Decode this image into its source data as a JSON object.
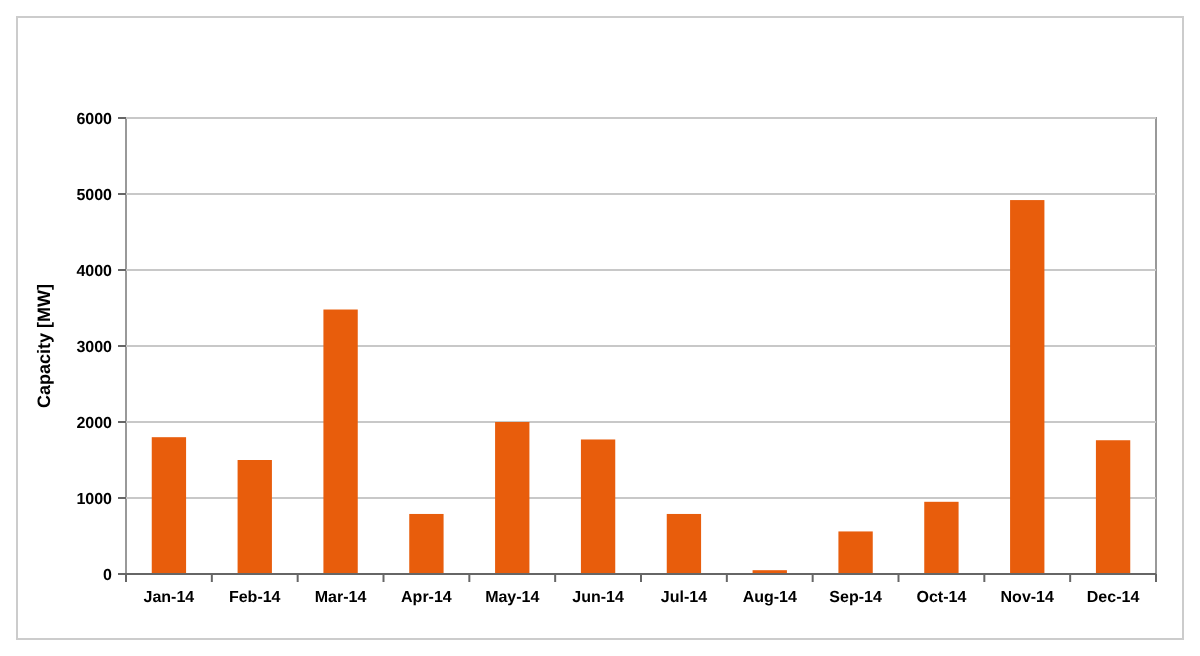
{
  "chart_data": {
    "type": "bar",
    "ylabel": "Capacity [MW]",
    "categories": [
      "Jan-14",
      "Feb-14",
      "Mar-14",
      "Apr-14",
      "May-14",
      "Jun-14",
      "Jul-14",
      "Aug-14",
      "Sep-14",
      "Oct-14",
      "Nov-14",
      "Dec-14"
    ],
    "values": [
      1800,
      1500,
      3480,
      790,
      2000,
      1770,
      790,
      50,
      560,
      950,
      4920,
      1760
    ],
    "color": "#e85d0c",
    "ylim": [
      0,
      6000
    ],
    "yticks": [
      0,
      1000,
      2000,
      3000,
      4000,
      5000,
      6000
    ],
    "grid": "y"
  }
}
